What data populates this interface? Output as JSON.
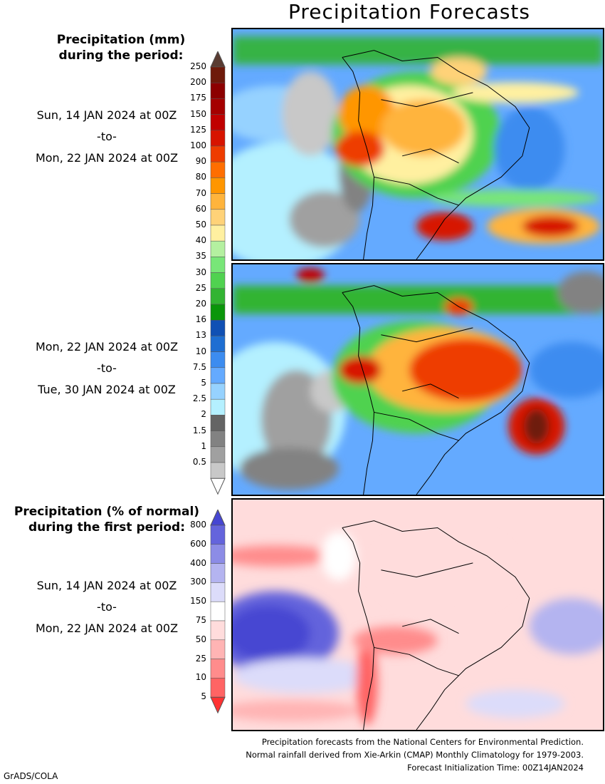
{
  "title": "Precipitation Forecasts",
  "panel1": {
    "heading_line1": "Precipitation (mm)",
    "heading_line2": "during the period:",
    "start": "Sun, 14 JAN 2024 at 00Z",
    "to": "-to-",
    "end": "Mon, 22 JAN 2024 at 00Z"
  },
  "panel2": {
    "start": "Mon, 22 JAN 2024 at 00Z",
    "to": "-to-",
    "end": "Tue, 30 JAN 2024 at 00Z"
  },
  "panel3": {
    "heading_line1": "Precipitation (% of normal)",
    "heading_line2": "during the first period:",
    "start": "Sun, 14 JAN 2024 at 00Z",
    "to": "-to-",
    "end": "Mon, 22 JAN 2024 at 00Z"
  },
  "precip_scale": {
    "ticks": [
      "250",
      "200",
      "175",
      "150",
      "125",
      "100",
      "90",
      "80",
      "70",
      "60",
      "50",
      "40",
      "35",
      "30",
      "25",
      "20",
      "16",
      "13",
      "10",
      "7.5",
      "5",
      "2.5",
      "2",
      "1.5",
      "1",
      "0.5"
    ],
    "colors": [
      "#6e1a0a",
      "#8c0000",
      "#a50000",
      "#c00000",
      "#d71400",
      "#ee3c00",
      "#ff6e00",
      "#ff9600",
      "#ffb43c",
      "#ffd278",
      "#fff0a0",
      "#b4f0a0",
      "#78e678",
      "#50d250",
      "#32b432",
      "#0a960a",
      "#1050b4",
      "#1e6ed2",
      "#3c8cf0",
      "#64aaff",
      "#96d2ff",
      "#b4f0ff",
      "#646464",
      "#828282",
      "#a0a0a0",
      "#c8c8c8"
    ],
    "top_arrow_color": "#5a3c32",
    "bottom_arrow_color": "#ffffff"
  },
  "pct_scale": {
    "ticks": [
      "800",
      "600",
      "400",
      "300",
      "150",
      "75",
      "50",
      "25",
      "10",
      "5"
    ],
    "colors": [
      "#6464dc",
      "#8c8ce6",
      "#b4b4f0",
      "#dcdcfa",
      "#ffffff",
      "#ffdcdc",
      "#ffb4b4",
      "#ff8c8c",
      "#ff6464"
    ],
    "top_arrow_color": "#4646d2",
    "bottom_arrow_color": "#ff3232"
  },
  "footer": {
    "line1": "Precipitation forecasts from the National Centers for Environmental Prediction.",
    "line2": "Normal rainfall derived from Xie-Arkin (CMAP) Monthly Climatology for 1979-2003.",
    "line3": "Forecast Initialization Time: 00Z14JAN2024"
  },
  "credit": "GrADS/COLA"
}
